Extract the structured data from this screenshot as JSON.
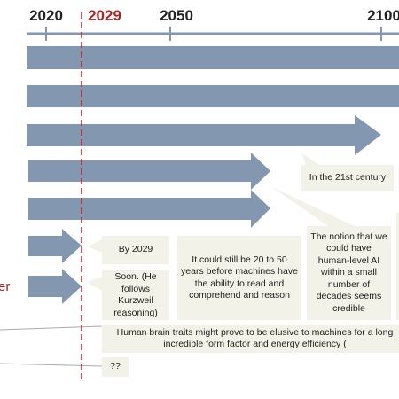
{
  "timeline": {
    "years": [
      "2020",
      "2029",
      "2050",
      "2100"
    ]
  },
  "row_labels": [
    "er"
  ],
  "notes": [
    "In the 21st century",
    "By 2029",
    "Soon. (He follows Kurzweil reasoning)",
    "It could still be 20 to 50 years before machines have the ability to read and comprehend and reason",
    "The notion that we could have human-level AI within a small number of decades seems credible",
    "Human brain traits might prove to be elusive to machines for a long incredible form factor and energy efficiency (",
    "??"
  ]
}
